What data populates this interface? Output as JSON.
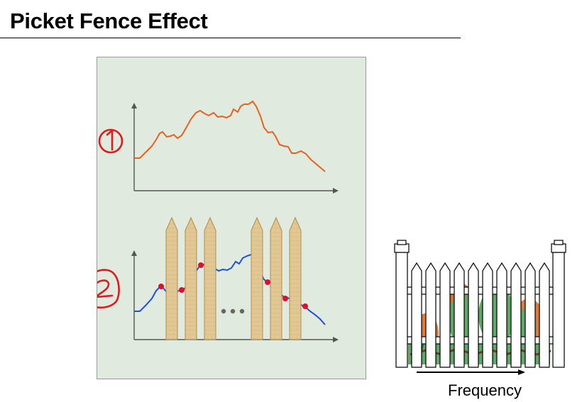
{
  "title": "Picket Fence Effect",
  "axis_label": "Frequency",
  "markers": [
    "1",
    "2"
  ],
  "colors": {
    "panel_bg": "#e1eadf",
    "true_spectrum": "#e8621e",
    "sampled_spectrum": "#1f4fe0",
    "sample_point": "#e0102c",
    "picket_wood": "#e2c894",
    "marker_ink": "#e01b1b"
  },
  "icons": [
    "picket-fence-icon",
    "arrow-right-icon",
    "ellipsis-icon"
  ]
}
